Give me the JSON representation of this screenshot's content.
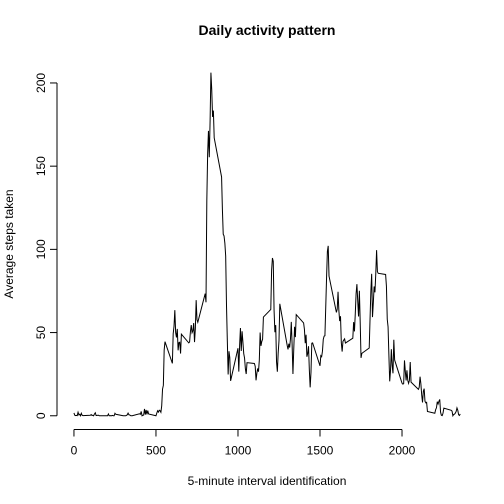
{
  "chart_data": {
    "type": "line",
    "title": "Daily activity pattern",
    "x_label": "5-minute interval identification",
    "y_label": "Average steps taken",
    "color": "#000000",
    "xlim": [
      -94.2,
      2449.2
    ],
    "xticks": [
      0,
      500,
      1000,
      1500,
      2000
    ],
    "ylim": [
      -8.25,
      214.4
    ],
    "yticks": [
      0,
      50,
      100,
      150,
      200
    ],
    "x": [
      0,
      5,
      10,
      15,
      20,
      25,
      30,
      35,
      40,
      45,
      50,
      55,
      100,
      105,
      110,
      115,
      120,
      125,
      130,
      135,
      140,
      145,
      150,
      155,
      200,
      205,
      210,
      215,
      220,
      225,
      230,
      235,
      240,
      245,
      250,
      255,
      300,
      305,
      310,
      315,
      320,
      325,
      330,
      335,
      340,
      345,
      350,
      355,
      400,
      405,
      410,
      415,
      420,
      425,
      430,
      435,
      440,
      445,
      450,
      455,
      500,
      505,
      510,
      515,
      520,
      525,
      530,
      535,
      540,
      545,
      550,
      555,
      600,
      605,
      610,
      615,
      620,
      625,
      630,
      635,
      640,
      645,
      650,
      655,
      700,
      705,
      710,
      715,
      720,
      725,
      730,
      735,
      740,
      745,
      750,
      755,
      800,
      805,
      810,
      815,
      820,
      825,
      830,
      835,
      840,
      845,
      850,
      855,
      900,
      905,
      910,
      915,
      920,
      925,
      930,
      935,
      940,
      945,
      950,
      955,
      1000,
      1005,
      1010,
      1015,
      1020,
      1025,
      1030,
      1035,
      1040,
      1045,
      1050,
      1055,
      1100,
      1105,
      1110,
      1115,
      1120,
      1125,
      1130,
      1135,
      1140,
      1145,
      1150,
      1155,
      1200,
      1205,
      1210,
      1215,
      1220,
      1225,
      1230,
      1235,
      1240,
      1245,
      1250,
      1255,
      1300,
      1305,
      1310,
      1315,
      1320,
      1325,
      1330,
      1335,
      1340,
      1345,
      1350,
      1355,
      1400,
      1405,
      1410,
      1415,
      1420,
      1425,
      1430,
      1435,
      1440,
      1445,
      1450,
      1455,
      1500,
      1505,
      1510,
      1515,
      1520,
      1525,
      1530,
      1535,
      1540,
      1545,
      1550,
      1555,
      1600,
      1605,
      1610,
      1615,
      1620,
      1625,
      1630,
      1635,
      1640,
      1645,
      1650,
      1655,
      1700,
      1705,
      1710,
      1715,
      1720,
      1725,
      1730,
      1735,
      1740,
      1745,
      1750,
      1755,
      1800,
      1805,
      1810,
      1815,
      1820,
      1825,
      1830,
      1835,
      1840,
      1845,
      1850,
      1855,
      1900,
      1905,
      1910,
      1915,
      1920,
      1925,
      1930,
      1935,
      1940,
      1945,
      1950,
      1955,
      2000,
      2005,
      2010,
      2015,
      2020,
      2025,
      2030,
      2035,
      2040,
      2045,
      2050,
      2055,
      2100,
      2105,
      2110,
      2115,
      2120,
      2125,
      2130,
      2135,
      2140,
      2145,
      2150,
      2155,
      2200,
      2205,
      2210,
      2215,
      2220,
      2225,
      2230,
      2235,
      2240,
      2245,
      2250,
      2255,
      2300,
      2305,
      2310,
      2315,
      2320,
      2325,
      2330,
      2335,
      2340,
      2345,
      2350,
      2355
    ],
    "values": [
      1.7,
      0.3,
      0.1,
      0.2,
      0.1,
      2.1,
      0.5,
      0.9,
      0,
      1.5,
      0.3,
      0.1,
      0.3,
      0.7,
      0.2,
      0.3,
      0,
      1.1,
      1.8,
      0.2,
      0.2,
      0.3,
      0.3,
      0,
      0,
      0,
      1.1,
      0,
      0,
      0.1,
      0,
      0.2,
      0,
      0,
      1.5,
      0.9,
      0,
      0,
      0,
      0,
      0.2,
      0.6,
      1.6,
      0.6,
      0.5,
      0.1,
      0,
      0,
      1.2,
      0.9,
      2.6,
      0,
      0.3,
      0.4,
      4.1,
      0.7,
      3.5,
      0.8,
      3.1,
      1.1,
      0,
      1.6,
      3,
      2.2,
      3.3,
      3,
      2.1,
      6,
      16,
      18.3,
      39.5,
      44.5,
      31.5,
      49.3,
      53.8,
      63.5,
      50,
      47.1,
      52.2,
      39.3,
      44,
      44.2,
      37.4,
      49,
      43.8,
      44.4,
      50.5,
      54.5,
      49.9,
      51,
      55.7,
      44.3,
      52.3,
      69.5,
      57.8,
      56.2,
      73.4,
      68.2,
      129.4,
      157.5,
      171.2,
      155.4,
      177.3,
      206.2,
      195.9,
      179.6,
      183.4,
      167,
      143.5,
      124,
      109.1,
      108.1,
      103.7,
      95.97,
      66.2,
      45.2,
      24.8,
      38.8,
      35,
      21,
      40.6,
      26.5,
      42.4,
      52.7,
      38.9,
      50.8,
      44.3,
      37.4,
      34.7,
      28.3,
      25.1,
      31.9,
      31.4,
      29.7,
      21.3,
      25.5,
      28.4,
      26.5,
      33.4,
      50,
      42,
      44.6,
      46,
      59.3,
      63.9,
      87.5,
      94.8,
      92.8,
      63.4,
      50.2,
      54.5,
      32.4,
      26.5,
      37.7,
      45.1,
      67.3,
      42.3,
      39.9,
      43.3,
      40.98,
      46.2,
      56.4,
      42.8,
      25.1,
      39.96,
      53.5,
      47.3,
      60.8,
      55.8,
      51.96,
      43.6,
      48.7,
      35.5,
      37.5,
      41.8,
      27.5,
      17.1,
      26.1,
      43.6,
      43.8,
      30,
      36.1,
      35.5,
      38.8,
      45.96,
      47.8,
      48.1,
      65.3,
      82.9,
      98.7,
      102.1,
      83.96,
      62.1,
      64.1,
      74.5,
      63.2,
      56.9,
      59.8,
      43.9,
      38.6,
      44.7,
      45.5,
      46.2,
      43.7,
      46.6,
      56.3,
      50.7,
      61.2,
      73.4,
      79.1,
      68.9,
      59.7,
      75.1,
      56.5,
      34.8,
      37.5,
      40.7,
      58,
      74.7,
      85.3,
      59.3,
      67.8,
      77.7,
      74.2,
      85.3,
      99.5,
      86.6,
      85.6,
      84.9,
      77.8,
      58,
      53.4,
      36.3,
      20.7,
      27.4,
      40,
      30.2,
      25.5,
      45.7,
      33.5,
      19.6,
      19,
      19.3,
      33.3,
      26.8,
      21.2,
      27.3,
      21.3,
      19.5,
      21.3,
      32.3,
      20.2,
      15.9,
      17.2,
      23.5,
      19.2,
      12.5,
      8,
      14.7,
      16.3,
      8.7,
      7.8,
      8.1,
      2.6,
      1.5,
      3.7,
      4.8,
      8.5,
      7.1,
      8.7,
      9.8,
      2.2,
      0.3,
      0.1,
      1.6,
      4.6,
      3.3,
      2.8,
      0,
      0.8,
      0.96,
      1.6,
      2.6,
      4.7,
      3.3,
      0.6,
      0.2,
      1.1
    ]
  }
}
